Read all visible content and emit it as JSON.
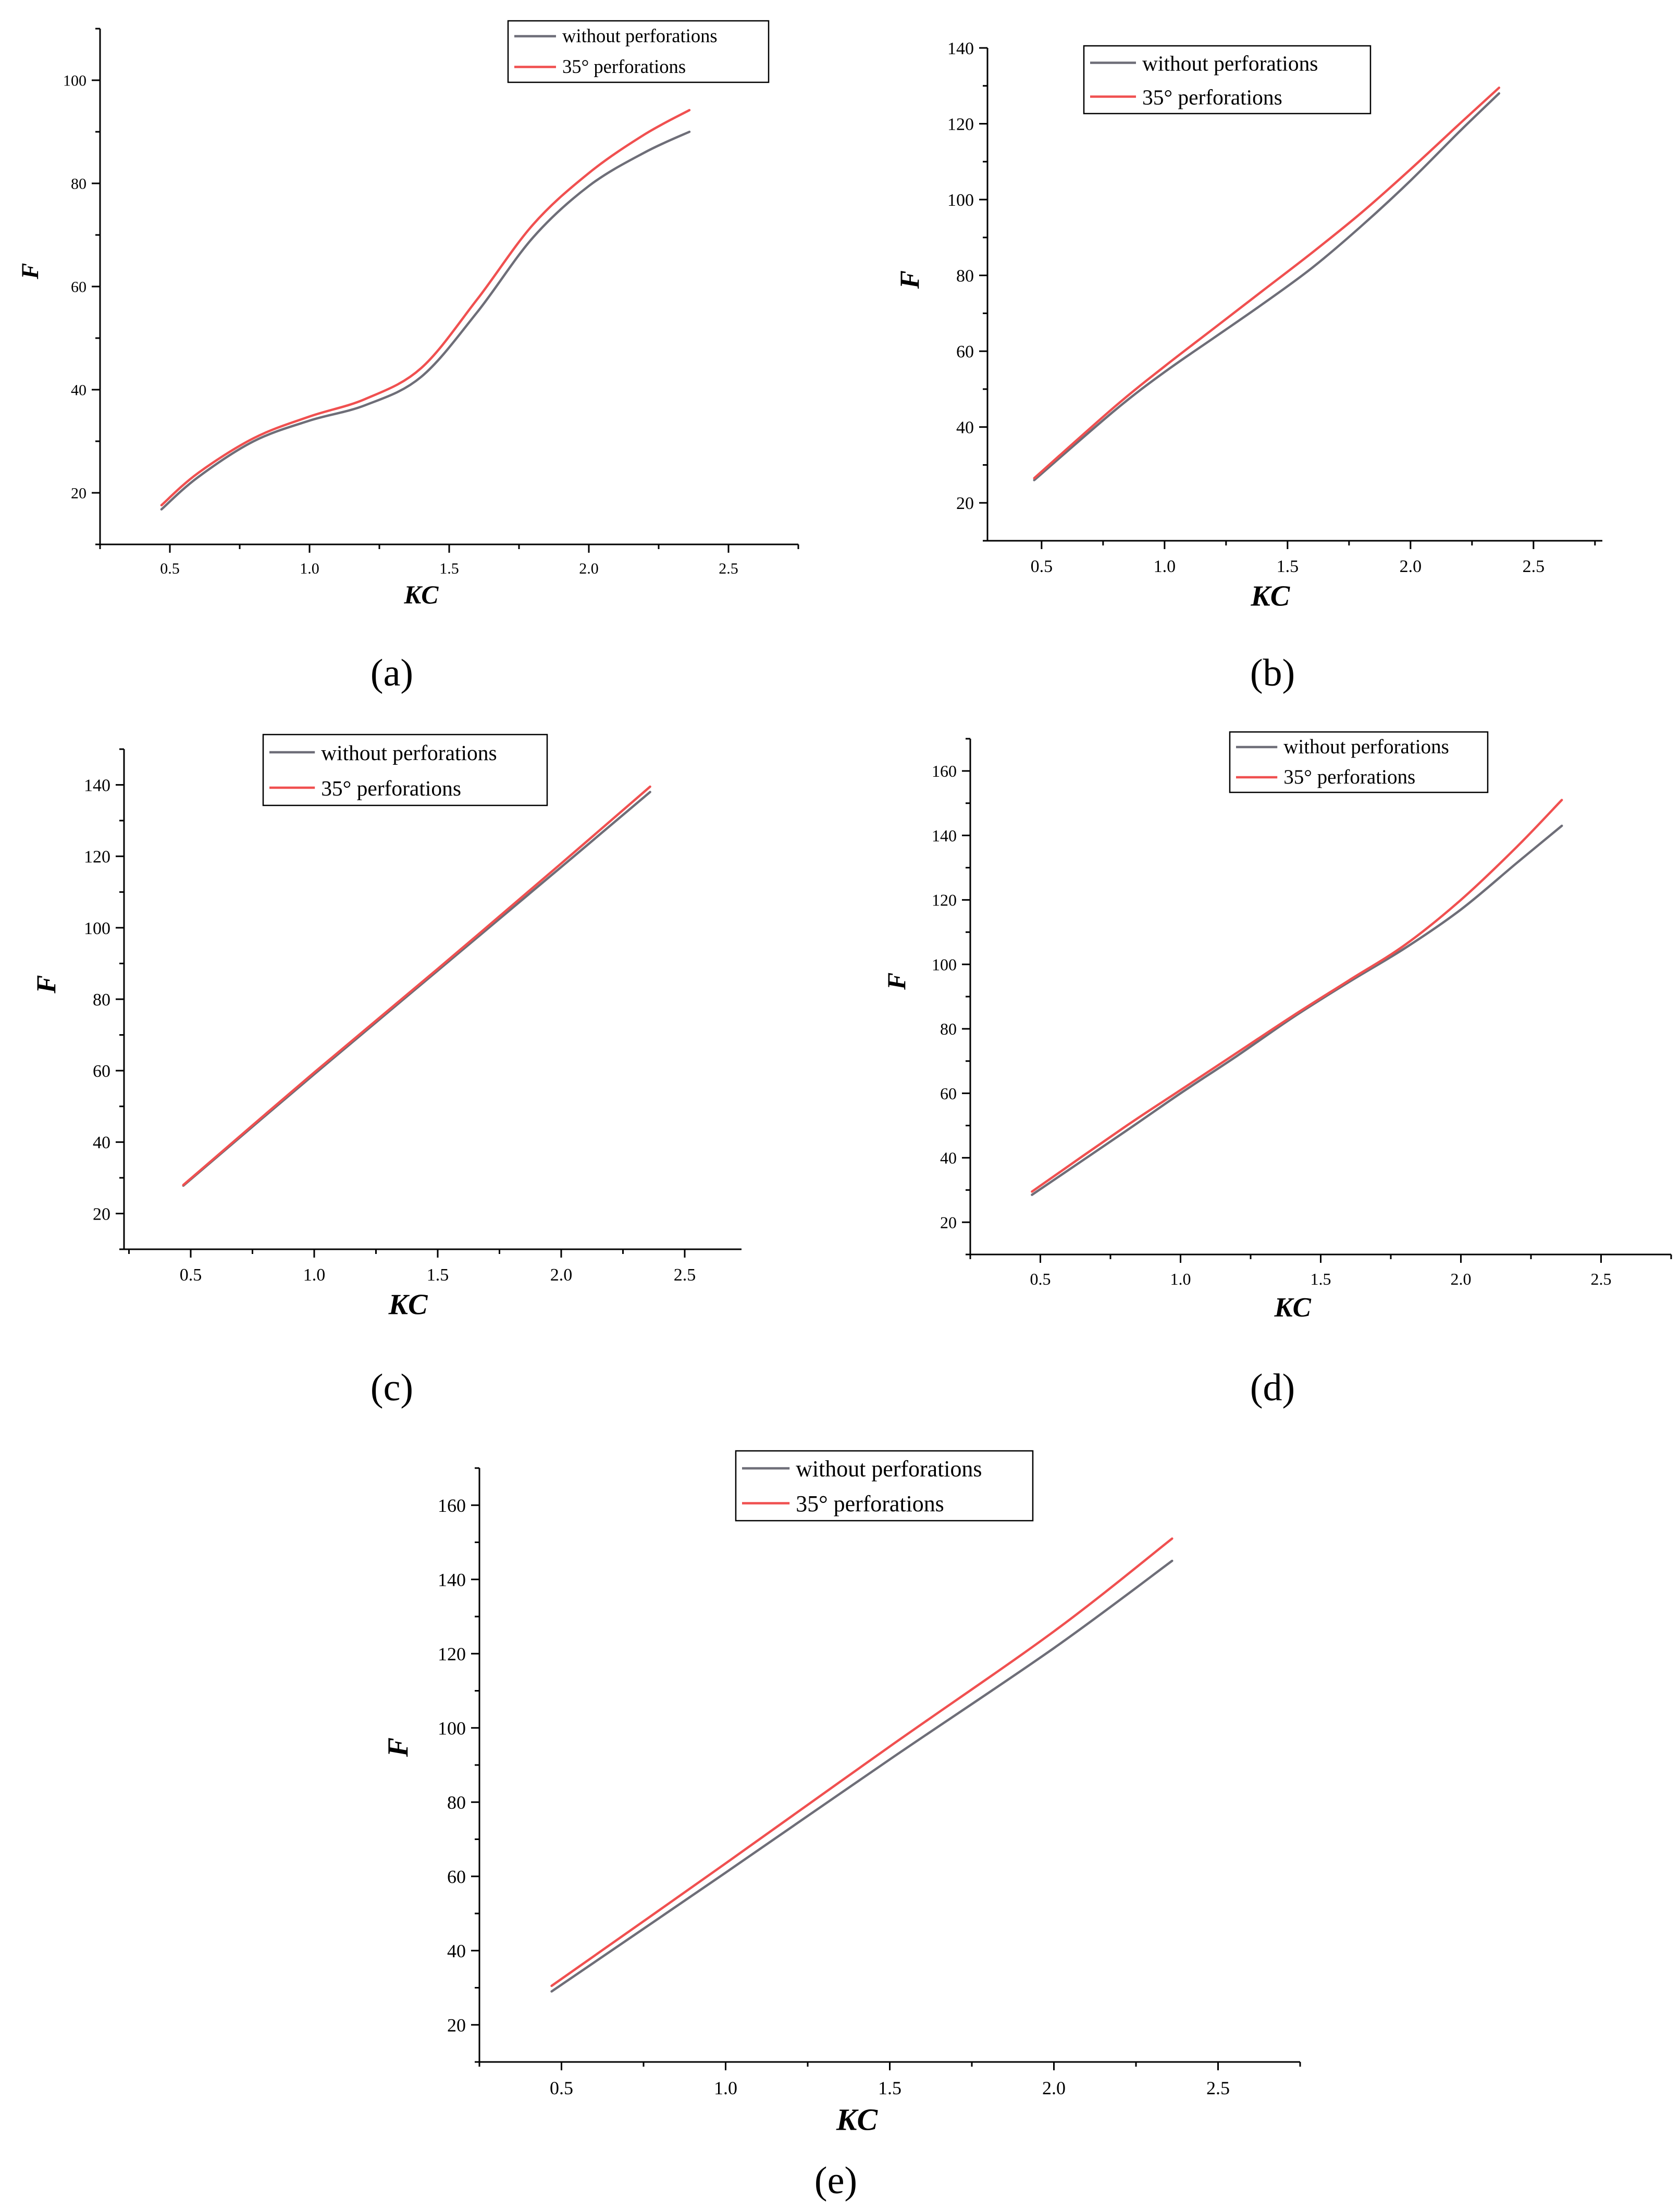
{
  "figure": {
    "panel_labels": [
      "(a)",
      "(b)",
      "(c)",
      "(d)",
      "(e)"
    ]
  },
  "colors": {
    "without_perforations": "#6e6e78",
    "perforations_35": "#f05050",
    "axis": "#000000"
  },
  "chart_data": [
    {
      "type": "line",
      "panel": "(a)",
      "xlabel": "KC",
      "ylabel": "F",
      "xlim": [
        0.25,
        2.75
      ],
      "ylim": [
        10,
        110
      ],
      "xticks": [
        "0.5",
        "1.0",
        "1.5",
        "2.0",
        "2.5"
      ],
      "yticks": [
        "20",
        "40",
        "60",
        "80",
        "100"
      ],
      "legend": "top-center",
      "series": [
        {
          "name": "without perforations",
          "x": [
            0.47,
            0.6,
            0.8,
            1.0,
            1.2,
            1.4,
            1.6,
            1.8,
            2.0,
            2.2,
            2.36
          ],
          "y": [
            16.8,
            23.0,
            30.0,
            34.0,
            37.0,
            42.5,
            55.0,
            69.5,
            79.5,
            86.0,
            90.0
          ]
        },
        {
          "name": "35° perforations",
          "x": [
            0.47,
            0.6,
            0.8,
            1.0,
            1.2,
            1.4,
            1.6,
            1.8,
            2.0,
            2.2,
            2.36
          ],
          "y": [
            17.6,
            23.8,
            30.6,
            34.8,
            38.2,
            44.2,
            57.5,
            72.0,
            82.0,
            89.5,
            94.2
          ]
        }
      ]
    },
    {
      "type": "line",
      "panel": "(b)",
      "xlabel": "KC",
      "ylabel": "F",
      "xlim": [
        0.28,
        2.78
      ],
      "ylim": [
        10,
        140
      ],
      "xticks": [
        "0.5",
        "1.0",
        "1.5",
        "2.0",
        "2.5"
      ],
      "yticks": [
        "20",
        "40",
        "60",
        "80",
        "100",
        "120",
        "140"
      ],
      "legend": "top-center",
      "series": [
        {
          "name": "without perforations",
          "x": [
            0.47,
            0.8,
            1.0,
            1.2,
            1.4,
            1.6,
            1.8,
            2.0,
            2.2,
            2.36
          ],
          "y": [
            26.0,
            44.5,
            54.5,
            63.5,
            72.5,
            82.0,
            93.0,
            105.0,
            118.0,
            128.0
          ]
        },
        {
          "name": "35° perforations",
          "x": [
            0.47,
            0.8,
            1.0,
            1.2,
            1.4,
            1.6,
            1.8,
            2.0,
            2.2,
            2.36
          ],
          "y": [
            26.5,
            45.5,
            56.0,
            66.0,
            76.0,
            86.0,
            96.5,
            108.0,
            120.0,
            129.5
          ]
        }
      ]
    },
    {
      "type": "line",
      "panel": "(c)",
      "xlabel": "KC",
      "ylabel": "F",
      "xlim": [
        0.23,
        2.73
      ],
      "ylim": [
        10,
        150
      ],
      "xticks": [
        "0.5",
        "1.0",
        "1.5",
        "2.0",
        "2.5"
      ],
      "yticks": [
        "20",
        "40",
        "60",
        "80",
        "100",
        "120",
        "140"
      ],
      "legend": "top-center",
      "series": [
        {
          "name": "without perforations",
          "x": [
            0.47,
            1.0,
            1.5,
            2.0,
            2.36
          ],
          "y": [
            27.8,
            59.0,
            88.0,
            117.0,
            138.0
          ]
        },
        {
          "name": "35° perforations",
          "x": [
            0.47,
            1.0,
            1.5,
            2.0,
            2.36
          ],
          "y": [
            28.0,
            59.5,
            88.5,
            118.0,
            139.5
          ]
        }
      ]
    },
    {
      "type": "line",
      "panel": "(d)",
      "xlabel": "KC",
      "ylabel": "F",
      "xlim": [
        0.25,
        2.75
      ],
      "ylim": [
        10,
        170
      ],
      "xticks": [
        "0.5",
        "1.0",
        "1.5",
        "2.0",
        "2.5"
      ],
      "yticks": [
        "20",
        "40",
        "60",
        "80",
        "100",
        "120",
        "140",
        "160"
      ],
      "legend": "top-center",
      "series": [
        {
          "name": "without perforations",
          "x": [
            0.47,
            0.8,
            1.0,
            1.2,
            1.4,
            1.6,
            1.8,
            2.0,
            2.2,
            2.36
          ],
          "y": [
            28.5,
            48.0,
            60.0,
            71.5,
            83.5,
            94.5,
            105.0,
            117.0,
            131.5,
            143.0
          ]
        },
        {
          "name": "35° perforations",
          "x": [
            0.47,
            0.8,
            1.0,
            1.2,
            1.4,
            1.6,
            1.8,
            2.0,
            2.2,
            2.36
          ],
          "y": [
            29.5,
            49.5,
            61.0,
            72.5,
            84.0,
            95.0,
            106.0,
            120.0,
            136.5,
            151.0
          ]
        }
      ]
    },
    {
      "type": "line",
      "panel": "(e)",
      "xlabel": "KC",
      "ylabel": "F",
      "xlim": [
        0.25,
        2.75
      ],
      "ylim": [
        10,
        170
      ],
      "xticks": [
        "0.5",
        "1.0",
        "1.5",
        "2.0",
        "2.5"
      ],
      "yticks": [
        "20",
        "40",
        "60",
        "80",
        "100",
        "120",
        "140",
        "160"
      ],
      "legend": "top-center",
      "series": [
        {
          "name": "without perforations",
          "x": [
            0.47,
            1.0,
            1.5,
            2.0,
            2.36
          ],
          "y": [
            29.0,
            61.0,
            91.5,
            121.5,
            145.0
          ]
        },
        {
          "name": "35° perforations",
          "x": [
            0.47,
            1.0,
            1.5,
            2.0,
            2.36
          ],
          "y": [
            30.5,
            63.5,
            95.0,
            126.0,
            151.0
          ]
        }
      ]
    }
  ]
}
